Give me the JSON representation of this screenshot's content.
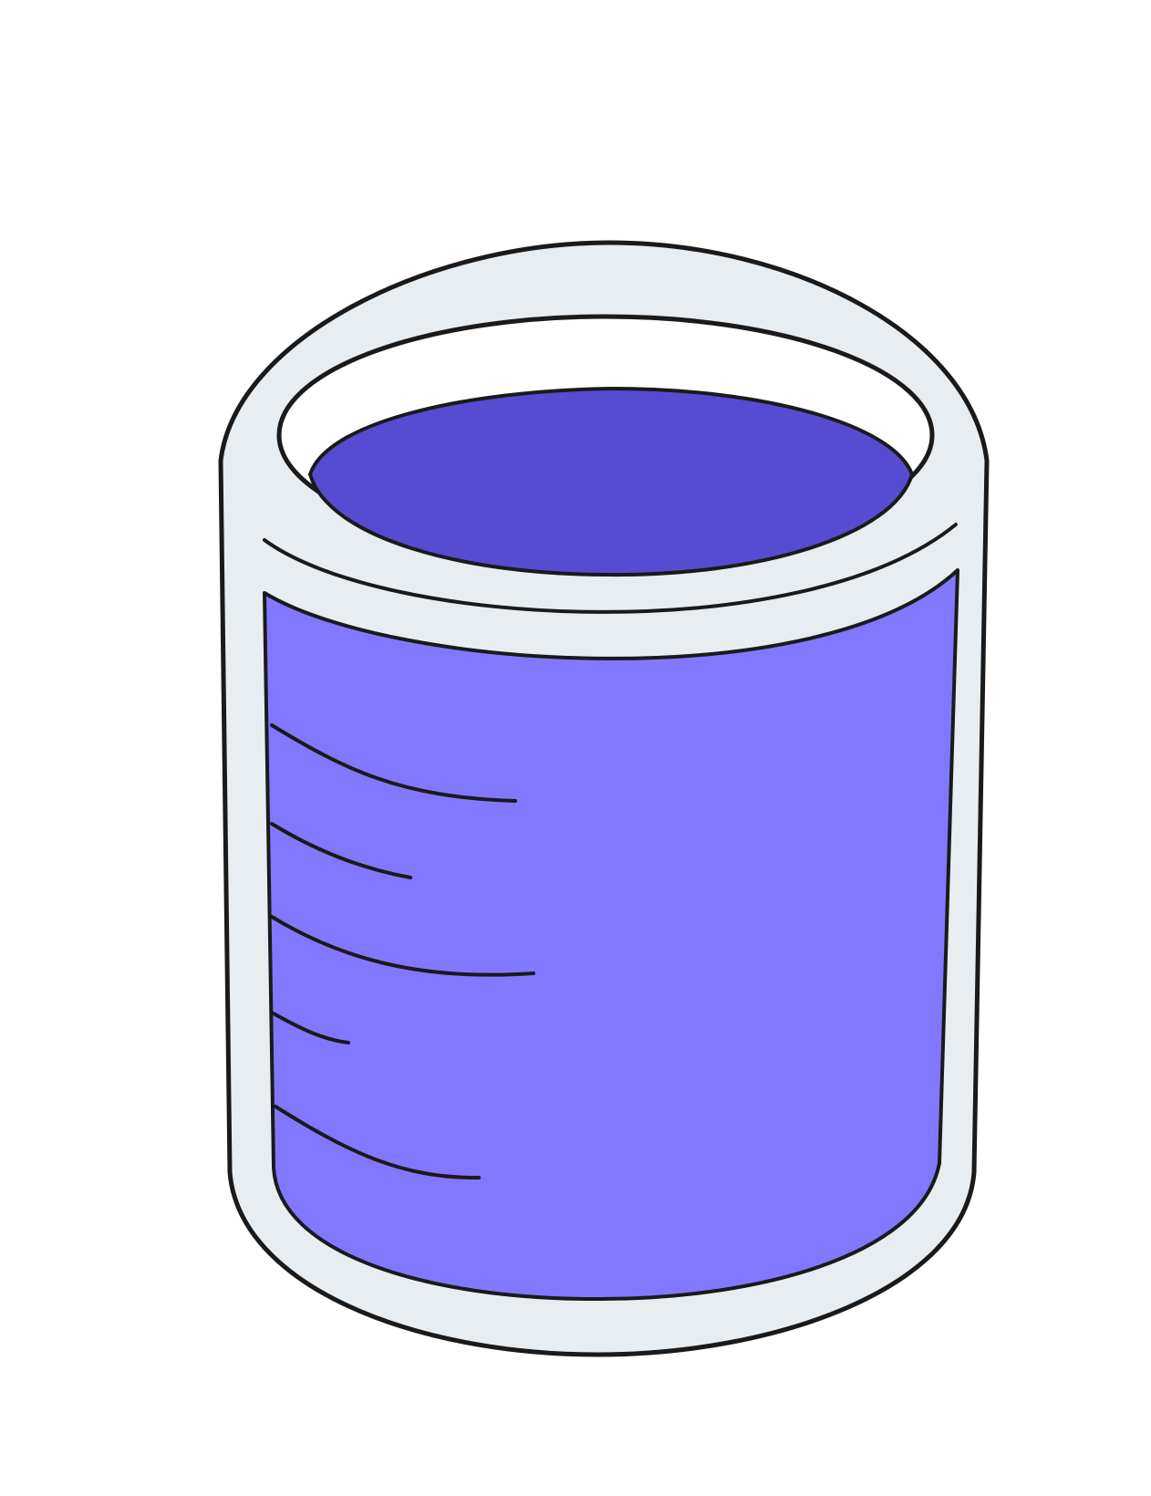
{
  "illustration": {
    "subject": "beaker",
    "liquid_level_fraction": 0.87,
    "colors": {
      "background": "#ffffff",
      "glass": "#e8edf1",
      "liquid_body": "#8178ff",
      "liquid_surface": "#574bd2",
      "outline": "#1a1a1a"
    },
    "graduation_mark_count": 5
  }
}
